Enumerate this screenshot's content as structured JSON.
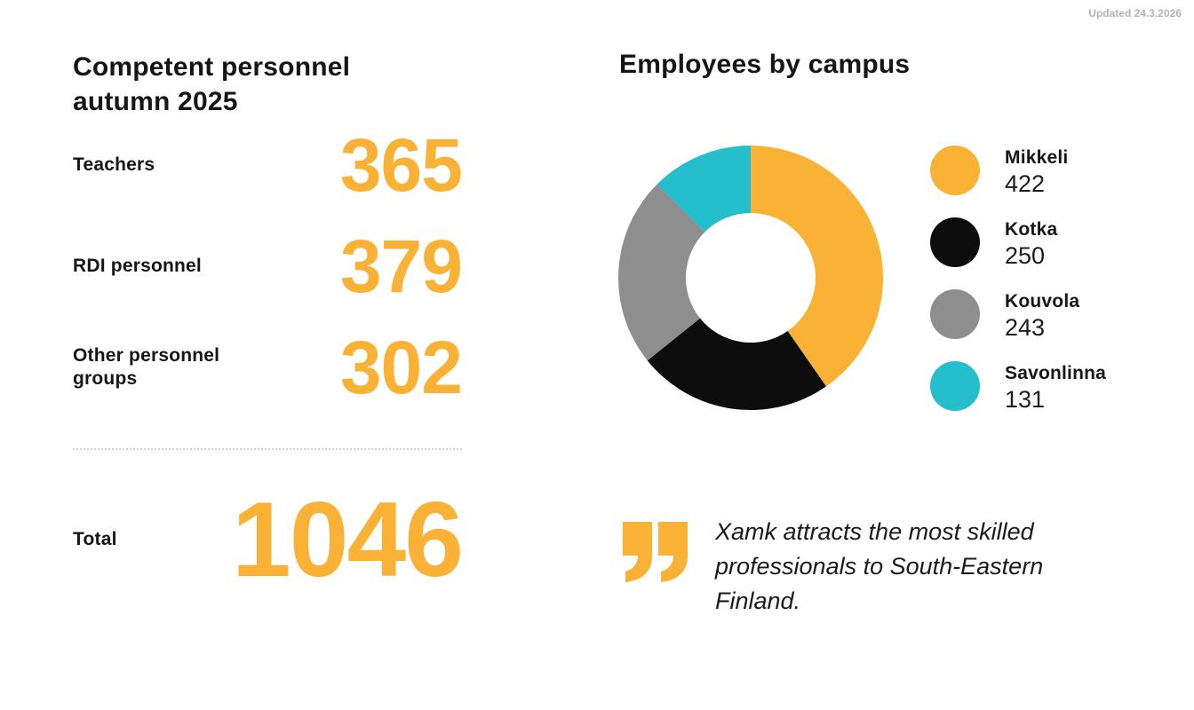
{
  "updated": "Updated 24.3.2026",
  "colors": {
    "accent": "#F9B235",
    "black": "#0D0D0D",
    "gray": "#8E8E8E",
    "teal": "#24BECC",
    "muted_text": "#B4B4B4"
  },
  "left_panel": {
    "title_lines": [
      "Competent personnel",
      "autumn 2025"
    ],
    "stats": [
      {
        "label_lines": [
          "Teachers"
        ],
        "value": "365"
      },
      {
        "label_lines": [
          "RDI personnel"
        ],
        "value": "379"
      },
      {
        "label_lines": [
          "Other personnel",
          "groups"
        ],
        "value": "302"
      }
    ],
    "total": {
      "label": "Total",
      "value": "1046"
    }
  },
  "right_panel": {
    "title": "Employees by campus"
  },
  "quote": {
    "lines": [
      "Xamk attracts the most skilled",
      "professionals to South-Eastern",
      "Finland."
    ]
  },
  "chart_data": {
    "type": "pie",
    "subtype": "donut",
    "title": "Employees by campus",
    "categories": [
      "Mikkeli",
      "Kotka",
      "Kouvola",
      "Savonlinna"
    ],
    "values": [
      422,
      250,
      243,
      131
    ],
    "total": 1046,
    "start_angle_deg": 0,
    "direction": "clockwise",
    "inner_radius_ratio": 0.49,
    "legend_position": "right",
    "segments": [
      {
        "label": "Mikkeli",
        "value": 422,
        "display": "422",
        "color": "#F9B235"
      },
      {
        "label": "Kotka",
        "value": 250,
        "display": "250",
        "color": "#0D0D0D"
      },
      {
        "label": "Kouvola",
        "value": 243,
        "display": "243",
        "color": "#8E8E8E"
      },
      {
        "label": "Savonlinna",
        "value": 131,
        "display": "131",
        "color": "#24BECC"
      }
    ]
  }
}
